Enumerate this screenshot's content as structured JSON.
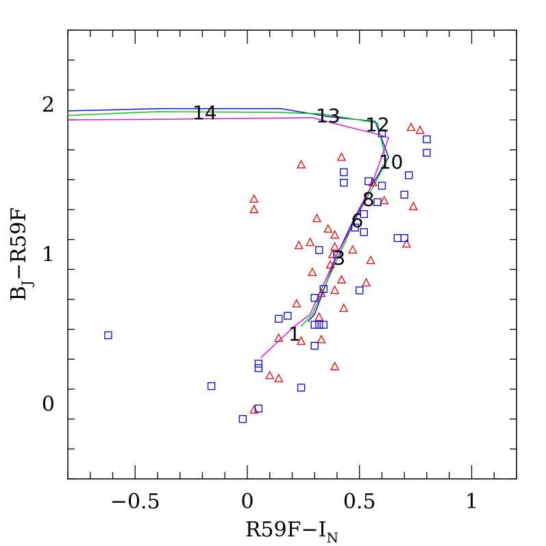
{
  "chart_data": {
    "type": "scatter",
    "xlabel": "R59F−I",
    "xlabel_sub": "N",
    "ylabel": "B",
    "ylabel_sub": "J",
    "ylabel_rest": "−R59F",
    "xlim": [
      -0.8,
      1.2
    ],
    "ylim": [
      -0.5,
      2.5
    ],
    "x_ticks": [
      -0.5,
      0,
      0.5,
      1
    ],
    "x_tick_labels": [
      "−0.5",
      "0",
      "0.5",
      "1"
    ],
    "y_ticks": [
      0,
      1,
      2
    ],
    "y_tick_labels": [
      "0",
      "1",
      "2"
    ],
    "x_minor_step": 0.1,
    "y_minor_step": 0.2,
    "grid": false,
    "colors": {
      "triangles": "#e01010",
      "squares": "#1010d0",
      "track_blue": "#1010d0",
      "track_green": "#10c010",
      "track_magenta": "#e010e0"
    },
    "series": [
      {
        "marker": "triangle",
        "color": "#e01010",
        "points": [
          [
            0.73,
            1.85
          ],
          [
            0.77,
            1.83
          ],
          [
            0.74,
            1.32
          ],
          [
            0.71,
            1.07
          ],
          [
            0.61,
            1.36
          ],
          [
            0.56,
            1.48
          ],
          [
            0.24,
            1.6
          ],
          [
            0.42,
            1.65
          ],
          [
            0.03,
            1.37
          ],
          [
            0.03,
            1.3
          ],
          [
            0.31,
            1.24
          ],
          [
            0.36,
            1.17
          ],
          [
            0.39,
            1.13
          ],
          [
            0.28,
            1.08
          ],
          [
            0.23,
            1.06
          ],
          [
            0.39,
            1.05
          ],
          [
            0.47,
            1.03
          ],
          [
            0.38,
            1.0
          ],
          [
            0.37,
            0.93
          ],
          [
            0.29,
            0.88
          ],
          [
            0.55,
            0.96
          ],
          [
            0.53,
            0.81
          ],
          [
            0.42,
            0.83
          ],
          [
            0.39,
            0.76
          ],
          [
            0.33,
            0.74
          ],
          [
            0.22,
            0.67
          ],
          [
            0.43,
            0.64
          ],
          [
            0.32,
            0.58
          ],
          [
            0.33,
            0.43
          ],
          [
            0.24,
            0.42
          ],
          [
            0.14,
            0.44
          ],
          [
            0.39,
            0.25
          ],
          [
            0.1,
            0.19
          ],
          [
            0.14,
            0.17
          ],
          [
            0.03,
            -0.04
          ]
        ]
      },
      {
        "marker": "square",
        "color": "#1010d0",
        "points": [
          [
            0.8,
            1.77
          ],
          [
            0.8,
            1.68
          ],
          [
            0.6,
            1.81
          ],
          [
            0.72,
            1.53
          ],
          [
            0.54,
            1.49
          ],
          [
            0.6,
            1.46
          ],
          [
            0.43,
            1.55
          ],
          [
            0.43,
            1.48
          ],
          [
            0.7,
            1.4
          ],
          [
            0.58,
            1.35
          ],
          [
            0.52,
            1.27
          ],
          [
            0.48,
            1.18
          ],
          [
            0.52,
            1.15
          ],
          [
            0.67,
            1.11
          ],
          [
            0.7,
            1.11
          ],
          [
            0.32,
            1.03
          ],
          [
            0.4,
            1.0
          ],
          [
            0.34,
            0.77
          ],
          [
            0.5,
            0.76
          ],
          [
            0.3,
            0.71
          ],
          [
            0.18,
            0.59
          ],
          [
            0.14,
            0.57
          ],
          [
            0.3,
            0.53
          ],
          [
            0.32,
            0.53
          ],
          [
            0.34,
            0.53
          ],
          [
            0.3,
            0.39
          ],
          [
            0.05,
            0.27
          ],
          [
            0.05,
            0.24
          ],
          [
            -0.62,
            0.46
          ],
          [
            -0.16,
            0.12
          ],
          [
            0.24,
            0.11
          ],
          [
            0.05,
            -0.03
          ],
          [
            -0.02,
            -0.1
          ]
        ]
      }
    ],
    "tracks": [
      {
        "color": "#1010d0",
        "points": [
          [
            -0.8,
            1.96
          ],
          [
            -0.4,
            1.975
          ],
          [
            0.15,
            1.975
          ],
          [
            0.37,
            1.92
          ],
          [
            0.57,
            1.89
          ],
          [
            0.63,
            1.65
          ],
          [
            0.55,
            1.45
          ],
          [
            0.48,
            1.25
          ],
          [
            0.4,
            1.0
          ],
          [
            0.35,
            0.8
          ],
          [
            0.3,
            0.6
          ],
          [
            0.27,
            0.55
          ]
        ]
      },
      {
        "color": "#10c010",
        "points": [
          [
            -0.8,
            1.93
          ],
          [
            -0.4,
            1.955
          ],
          [
            0.15,
            1.95
          ],
          [
            0.33,
            1.94
          ],
          [
            0.58,
            1.88
          ],
          [
            0.62,
            1.62
          ],
          [
            0.56,
            1.45
          ],
          [
            0.49,
            1.26
          ],
          [
            0.41,
            1.0
          ],
          [
            0.34,
            0.77
          ],
          [
            0.29,
            0.6
          ],
          [
            0.24,
            0.52
          ]
        ]
      },
      {
        "color": "#e010e0",
        "points": [
          [
            -0.8,
            1.9
          ],
          [
            -0.3,
            1.905
          ],
          [
            0.29,
            1.915
          ],
          [
            0.43,
            1.86
          ],
          [
            0.59,
            1.8
          ],
          [
            0.63,
            1.78
          ],
          [
            0.55,
            1.45
          ],
          [
            0.47,
            1.2
          ],
          [
            0.39,
            0.97
          ],
          [
            0.34,
            0.8
          ],
          [
            0.28,
            0.6
          ],
          [
            0.21,
            0.52
          ],
          [
            0.06,
            0.31
          ]
        ]
      }
    ],
    "annotations": [
      {
        "text": "14",
        "x": -0.19,
        "y": 1.95
      },
      {
        "text": "13",
        "x": 0.36,
        "y": 1.93
      },
      {
        "text": "12",
        "x": 0.58,
        "y": 1.87
      },
      {
        "text": "10",
        "x": 0.64,
        "y": 1.62
      },
      {
        "text": "8",
        "x": 0.54,
        "y": 1.37
      },
      {
        "text": "6",
        "x": 0.49,
        "y": 1.23
      },
      {
        "text": "3",
        "x": 0.41,
        "y": 0.98
      },
      {
        "text": "1",
        "x": 0.21,
        "y": 0.47
      }
    ]
  }
}
